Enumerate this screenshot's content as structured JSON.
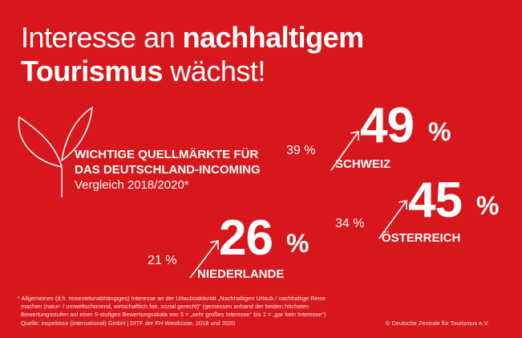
{
  "title": {
    "part1": "Interesse an ",
    "part2": "nachhaltigem",
    "part3": "Tourismus",
    "part4": " wächst!"
  },
  "subtitle": {
    "line1": "WICHTIGE QUELLMÄRKTE FÜR",
    "line2": "DAS DEUTSCHLAND-INCOMING",
    "line3": "Vergleich 2018/2020*"
  },
  "icons": [
    "plant-sprout-icon",
    "arrow-up-right-icon"
  ],
  "markets": [
    {
      "country": "SCHWEIZ",
      "value_2018": "39 %",
      "value_2020": "49",
      "unit": "%"
    },
    {
      "country": "ÖSTERREICH",
      "value_2018": "34 %",
      "value_2020": "45",
      "unit": "%"
    },
    {
      "country": "NIEDERLANDE",
      "value_2018": "21 %",
      "value_2020": "26",
      "unit": "%"
    }
  ],
  "footnote": [
    "* Allgemeines (d.h. reisezielunabhängiges) Interesse an der Urlaubsaktivität „Nachhaltigen Urlaub / nachhaltige Reise",
    "machen (natur- / umweltschonend, wirtschaftlich fair, sozial gerecht)“ (gemessen anhand der beiden höchsten",
    "Bewertungsstufen auf einer 5-stufigen Bewertungsskala von 5 = „sehr großes Interesse“ bis 1 = „gar kein Interesse“)",
    "Quelle: inspektour (international) GmbH | DITF der FH Westküste, 2018 und 2020"
  ],
  "copyright": "© Deutsche Zentrale für Tourismus e.V.",
  "colors": {
    "background": "#d8171d",
    "text": "#ffffff"
  }
}
